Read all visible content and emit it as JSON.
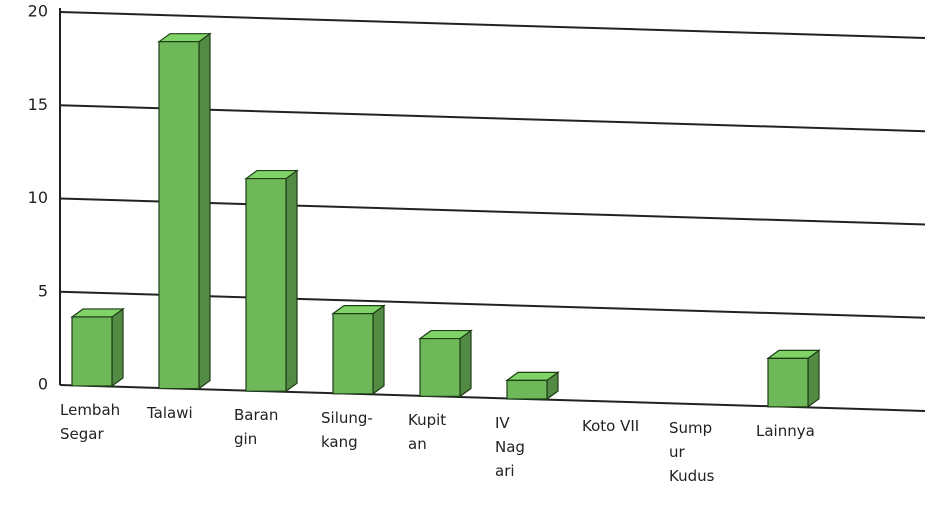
{
  "chart_data": {
    "type": "bar",
    "categories": [
      "Lembah\nSegar",
      "Talawi",
      "Baran\ngin",
      "Silung-\nkang",
      "Kupit\nan",
      "IV\nNag\nari",
      "Koto VII",
      "Sump\nur\nKudus",
      "Lainnya"
    ],
    "values": [
      3.7,
      18.6,
      11.4,
      4.3,
      3.1,
      1.0,
      0,
      0,
      2.6
    ],
    "color": "#6fb85a",
    "ylim": [
      0,
      20
    ],
    "yticks": [
      0,
      5,
      10,
      15,
      20
    ],
    "grid": true
  }
}
